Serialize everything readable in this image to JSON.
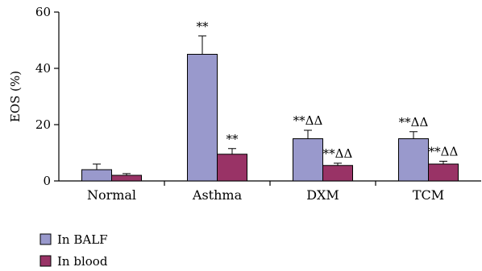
{
  "chart_data": {
    "type": "bar",
    "title": "",
    "xlabel": "",
    "ylabel": "EOS (%)",
    "ylim": [
      0,
      60
    ],
    "yticks": [
      0,
      20,
      40,
      60
    ],
    "categories": [
      "Normal",
      "Asthma",
      "DXM",
      "TCM"
    ],
    "series": [
      {
        "name": "In BALF",
        "color": "#9999cc",
        "values": [
          4,
          45,
          15,
          15
        ],
        "errors": [
          2,
          6.5,
          3,
          2.5
        ],
        "annotations": [
          "",
          "**",
          "**ΔΔ",
          "**ΔΔ"
        ]
      },
      {
        "name": "In blood",
        "color": "#993366",
        "values": [
          2,
          9.5,
          5.5,
          6
        ],
        "errors": [
          0.6,
          2,
          0.8,
          1
        ],
        "annotations": [
          "",
          "**",
          "**ΔΔ",
          "**ΔΔ"
        ]
      }
    ],
    "legend": "bottom-left",
    "grid": false
  }
}
